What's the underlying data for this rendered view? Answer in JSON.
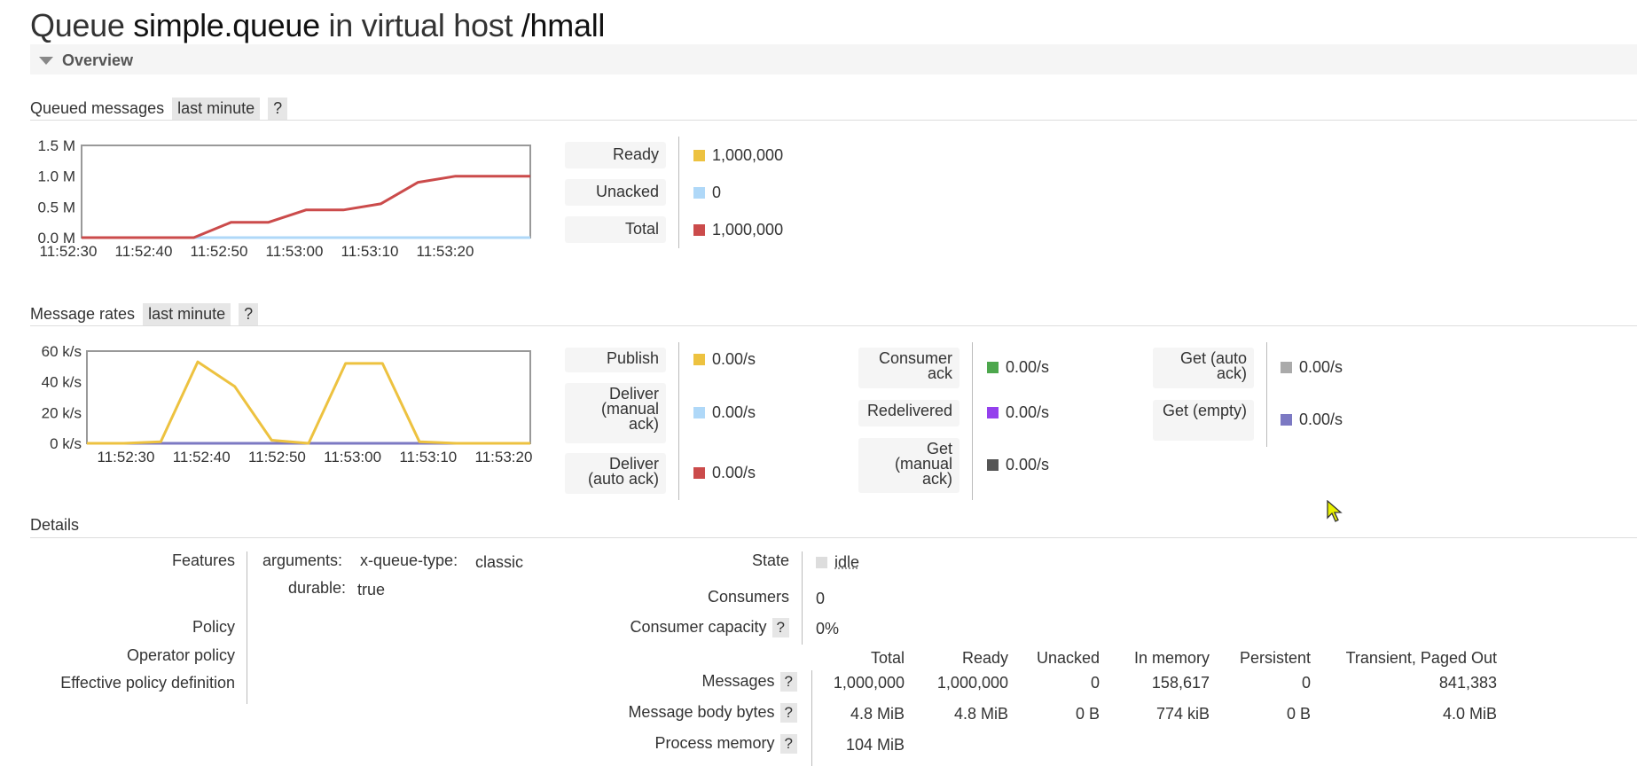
{
  "title": {
    "prefix": "Queue",
    "queue": "simple.queue",
    "mid": "in virtual host",
    "vhost": "/hmall"
  },
  "overview": {
    "label": "Overview"
  },
  "queued_messages": {
    "heading": "Queued messages",
    "range": "last minute",
    "help": "?",
    "legend": [
      {
        "label": "Ready",
        "value": "1,000,000",
        "color": "#EDC240"
      },
      {
        "label": "Unacked",
        "value": "0",
        "color": "#AFD8F8"
      },
      {
        "label": "Total",
        "value": "1,000,000",
        "color": "#CB4B4B"
      }
    ]
  },
  "message_rates": {
    "heading": "Message rates",
    "range": "last minute",
    "help": "?",
    "col1": [
      {
        "label": "Publish",
        "value": "0.00/s",
        "color": "#EDC240"
      },
      {
        "label": "Deliver (manual ack)",
        "value": "0.00/s",
        "color": "#AFD8F8"
      },
      {
        "label": "Deliver (auto ack)",
        "value": "0.00/s",
        "color": "#CB4B4B"
      }
    ],
    "col2": [
      {
        "label": "Consumer ack",
        "value": "0.00/s",
        "color": "#4DA74D"
      },
      {
        "label": "Redelivered",
        "value": "0.00/s",
        "color": "#9440ED"
      },
      {
        "label": "Get (manual ack)",
        "value": "0.00/s",
        "color": "#555555"
      }
    ],
    "col3": [
      {
        "label": "Get (auto ack)",
        "value": "0.00/s",
        "color": "#AAAAAA"
      },
      {
        "label": "Get (empty)",
        "value": "0.00/s",
        "color": "#7C79C3"
      }
    ]
  },
  "details": {
    "heading": "Details",
    "features_label": "Features",
    "arguments_label": "arguments:",
    "xqt_label": "x-queue-type:",
    "xqt_value": "classic",
    "durable_label": "durable:",
    "durable_value": "true",
    "policy_label": "Policy",
    "operator_policy_label": "Operator policy",
    "effective_policy_label": "Effective policy definition",
    "state_label": "State",
    "state_value": "idle",
    "consumers_label": "Consumers",
    "consumers_value": "0",
    "capacity_label": "Consumer capacity",
    "capacity_value": "0%",
    "help": "?",
    "table": {
      "headers": [
        "Total",
        "Ready",
        "Unacked",
        "In memory",
        "Persistent",
        "Transient, Paged Out"
      ],
      "rows": [
        {
          "label": "Messages",
          "cells": [
            "1,000,000",
            "1,000,000",
            "0",
            "158,617",
            "0",
            "841,383"
          ]
        },
        {
          "label": "Message body bytes",
          "cells": [
            "4.8 MiB",
            "4.8 MiB",
            "0 B",
            "774 kiB",
            "0 B",
            "4.0 MiB"
          ]
        },
        {
          "label": "Process memory",
          "cells": [
            "104 MiB"
          ]
        }
      ]
    }
  },
  "chart_data": [
    {
      "type": "line",
      "x": [
        "11:52:25",
        "11:52:30",
        "11:52:35",
        "11:52:40",
        "11:52:45",
        "11:52:50",
        "11:52:55",
        "11:53:00",
        "11:53:05",
        "11:53:10",
        "11:53:15",
        "11:53:20",
        "11:53:25"
      ],
      "x_ticks": [
        "11:52:30",
        "11:52:40",
        "11:52:50",
        "11:53:00",
        "11:53:10",
        "11:53:20"
      ],
      "y_ticks": [
        "0.0 M",
        "0.5 M",
        "1.0 M",
        "1.5 M"
      ],
      "ylim": [
        0,
        1500000
      ],
      "series": [
        {
          "name": "Total",
          "color": "#CB4B4B",
          "values": [
            0,
            0,
            0,
            0,
            250000,
            250000,
            450000,
            450000,
            550000,
            900000,
            1000000,
            1000000,
            1000000
          ]
        },
        {
          "name": "Unacked",
          "color": "#AFD8F8",
          "values": [
            0,
            0,
            0,
            0,
            0,
            0,
            0,
            0,
            0,
            0,
            0,
            0,
            0
          ]
        }
      ]
    },
    {
      "type": "line",
      "x": [
        "11:52:25",
        "11:52:30",
        "11:52:35",
        "11:52:40",
        "11:52:45",
        "11:52:50",
        "11:52:55",
        "11:53:00",
        "11:53:05",
        "11:53:10",
        "11:53:15",
        "11:53:20",
        "11:53:25"
      ],
      "x_ticks": [
        "11:52:30",
        "11:52:40",
        "11:52:50",
        "11:53:00",
        "11:53:10",
        "11:53:20"
      ],
      "y_ticks": [
        "0 k/s",
        "20 k/s",
        "40 k/s",
        "60 k/s"
      ],
      "ylim": [
        0,
        60000
      ],
      "series": [
        {
          "name": "Publish",
          "color": "#EDC240",
          "values": [
            0,
            0,
            1000,
            53000,
            37000,
            2000,
            0,
            52000,
            52000,
            1000,
            0,
            0,
            0
          ]
        },
        {
          "name": "Get (empty)",
          "color": "#7C79C3",
          "values": [
            0,
            0,
            0,
            0,
            0,
            0,
            0,
            0,
            0,
            0,
            0,
            0,
            0
          ]
        }
      ]
    }
  ]
}
